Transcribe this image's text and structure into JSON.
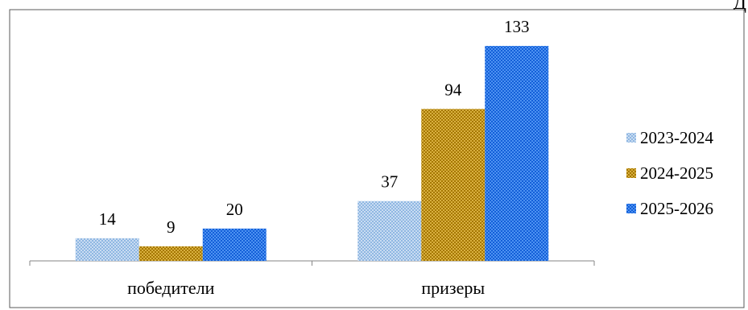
{
  "corner_text": "Д",
  "colors": {
    "series_1": "#9fc3e8",
    "series_2": "#bf8f00",
    "series_3": "#1f6fe5"
  },
  "chart_data": {
    "type": "bar",
    "categories": [
      "победители",
      "призеры"
    ],
    "series": [
      {
        "name": "2023-2024",
        "values": [
          14,
          37
        ]
      },
      {
        "name": "2024-2025",
        "values": [
          9,
          94
        ]
      },
      {
        "name": "2025-2026",
        "values": [
          20,
          133
        ]
      }
    ],
    "ylim": [
      0,
      140
    ],
    "grid": false,
    "legend": "right",
    "data_labels": true
  }
}
